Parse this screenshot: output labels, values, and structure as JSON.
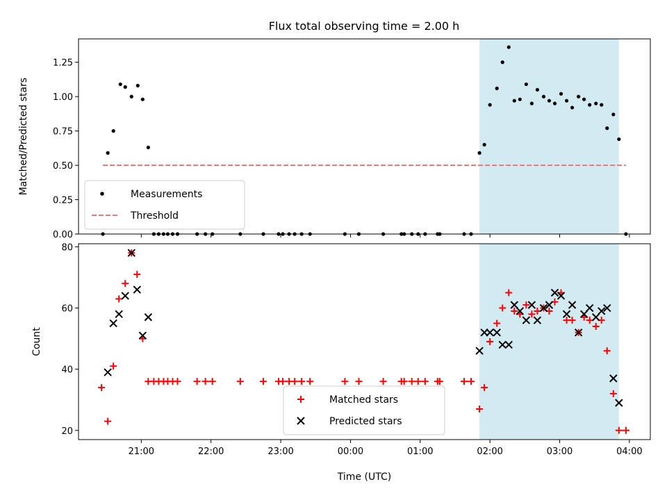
{
  "chart_data": [
    {
      "type": "scatter",
      "title": "Flux total observing time = 2.00 h",
      "xlabel": "",
      "ylabel": "Matched/Predicted stars",
      "xlim_hours": [
        20.1,
        28.3
      ],
      "ylim": [
        0,
        1.42
      ],
      "yticks": [
        0,
        0.25,
        0.5,
        0.75,
        1.0,
        1.25
      ],
      "ytick_labels": [
        "0.00",
        "0.25",
        "0.50",
        "0.75",
        "1.00",
        "1.25"
      ],
      "grid": false,
      "legend_position": "lower-left",
      "highlight": {
        "x_hours": [
          25.85,
          27.85
        ],
        "color": "#add8e6"
      },
      "threshold": {
        "name": "Threshold",
        "value": 0.5,
        "x_hours": [
          20.45,
          27.95
        ],
        "color": "#ff7070"
      },
      "series": [
        {
          "name": "Measurements",
          "color": "#000000",
          "marker": "dot",
          "points": [
            [
              20.45,
              0.0
            ],
            [
              20.52,
              0.59
            ],
            [
              20.6,
              0.75
            ],
            [
              20.7,
              1.09
            ],
            [
              20.77,
              1.07
            ],
            [
              20.86,
              1.0
            ],
            [
              20.95,
              1.08
            ],
            [
              21.02,
              0.98
            ],
            [
              21.1,
              0.63
            ],
            [
              21.18,
              0.0
            ],
            [
              21.25,
              0.0
            ],
            [
              21.32,
              0.0
            ],
            [
              21.38,
              0.0
            ],
            [
              21.45,
              0.0
            ],
            [
              21.52,
              0.0
            ],
            [
              21.8,
              0.0
            ],
            [
              21.92,
              0.0
            ],
            [
              22.02,
              0.0
            ],
            [
              22.42,
              0.0
            ],
            [
              22.75,
              0.0
            ],
            [
              22.97,
              0.0
            ],
            [
              23.03,
              0.0
            ],
            [
              23.12,
              0.0
            ],
            [
              23.2,
              0.0
            ],
            [
              23.3,
              0.0
            ],
            [
              23.42,
              0.0
            ],
            [
              23.92,
              0.0
            ],
            [
              24.12,
              0.0
            ],
            [
              24.47,
              0.0
            ],
            [
              24.73,
              0.0
            ],
            [
              24.77,
              0.0
            ],
            [
              24.88,
              0.0
            ],
            [
              24.97,
              0.0
            ],
            [
              25.07,
              0.0
            ],
            [
              25.25,
              0.0
            ],
            [
              25.28,
              0.0
            ],
            [
              25.63,
              0.0
            ],
            [
              25.73,
              0.0
            ],
            [
              25.85,
              0.59
            ],
            [
              25.92,
              0.65
            ],
            [
              26.0,
              0.94
            ],
            [
              26.1,
              1.06
            ],
            [
              26.18,
              1.25
            ],
            [
              26.27,
              1.36
            ],
            [
              26.35,
              0.97
            ],
            [
              26.43,
              0.98
            ],
            [
              26.52,
              1.09
            ],
            [
              26.6,
              0.95
            ],
            [
              26.68,
              1.05
            ],
            [
              26.77,
              1.0
            ],
            [
              26.85,
              0.97
            ],
            [
              26.93,
              0.95
            ],
            [
              27.02,
              1.02
            ],
            [
              27.1,
              0.97
            ],
            [
              27.18,
              0.92
            ],
            [
              27.27,
              1.0
            ],
            [
              27.35,
              0.98
            ],
            [
              27.43,
              0.94
            ],
            [
              27.52,
              0.95
            ],
            [
              27.6,
              0.94
            ],
            [
              27.68,
              0.77
            ],
            [
              27.77,
              0.87
            ],
            [
              27.85,
              0.69
            ],
            [
              27.95,
              0.0
            ]
          ]
        }
      ]
    },
    {
      "type": "scatter",
      "title": "",
      "xlabel": "Time (UTC)",
      "ylabel": "Count",
      "xlim_hours": [
        20.1,
        28.3
      ],
      "xticks_hours": [
        21,
        22,
        23,
        24,
        25,
        26,
        27,
        28
      ],
      "xtick_labels": [
        "21:00",
        "22:00",
        "23:00",
        "00:00",
        "01:00",
        "02:00",
        "03:00",
        "04:00"
      ],
      "ylim": [
        17,
        81
      ],
      "yticks": [
        20,
        40,
        60,
        80
      ],
      "ytick_labels": [
        "20",
        "40",
        "60",
        "80"
      ],
      "grid": false,
      "legend_position": "lower-center",
      "highlight": {
        "x_hours": [
          25.85,
          27.85
        ],
        "color": "#add8e6"
      },
      "series": [
        {
          "name": "Matched stars",
          "color": "#ff0000",
          "marker": "plus",
          "points": [
            [
              20.43,
              34
            ],
            [
              20.52,
              23
            ],
            [
              20.6,
              41
            ],
            [
              20.68,
              63
            ],
            [
              20.77,
              68
            ],
            [
              20.86,
              78
            ],
            [
              20.94,
              71
            ],
            [
              21.02,
              50
            ],
            [
              21.1,
              36
            ],
            [
              21.18,
              36
            ],
            [
              21.25,
              36
            ],
            [
              21.32,
              36
            ],
            [
              21.38,
              36
            ],
            [
              21.45,
              36
            ],
            [
              21.52,
              36
            ],
            [
              21.8,
              36
            ],
            [
              21.92,
              36
            ],
            [
              22.02,
              36
            ],
            [
              22.42,
              36
            ],
            [
              22.75,
              36
            ],
            [
              22.97,
              36
            ],
            [
              23.03,
              36
            ],
            [
              23.12,
              36
            ],
            [
              23.2,
              36
            ],
            [
              23.3,
              36
            ],
            [
              23.42,
              36
            ],
            [
              23.92,
              36
            ],
            [
              24.12,
              36
            ],
            [
              24.47,
              36
            ],
            [
              24.73,
              36
            ],
            [
              24.77,
              36
            ],
            [
              24.88,
              36
            ],
            [
              24.97,
              36
            ],
            [
              25.07,
              36
            ],
            [
              25.25,
              36
            ],
            [
              25.28,
              36
            ],
            [
              25.63,
              36
            ],
            [
              25.73,
              36
            ],
            [
              25.85,
              27
            ],
            [
              25.92,
              34
            ],
            [
              26.0,
              49
            ],
            [
              26.1,
              55
            ],
            [
              26.18,
              60
            ],
            [
              26.27,
              65
            ],
            [
              26.35,
              59
            ],
            [
              26.43,
              58
            ],
            [
              26.52,
              61
            ],
            [
              26.6,
              58
            ],
            [
              26.68,
              59
            ],
            [
              26.77,
              60
            ],
            [
              26.85,
              59
            ],
            [
              26.93,
              62
            ],
            [
              27.02,
              65
            ],
            [
              27.1,
              56
            ],
            [
              27.18,
              56
            ],
            [
              27.27,
              52
            ],
            [
              27.35,
              57
            ],
            [
              27.43,
              56
            ],
            [
              27.52,
              54
            ],
            [
              27.6,
              56
            ],
            [
              27.68,
              46
            ],
            [
              27.77,
              32
            ],
            [
              27.85,
              20
            ],
            [
              27.95,
              20
            ]
          ]
        },
        {
          "name": "Predicted stars",
          "color": "#000000",
          "marker": "cross",
          "points": [
            [
              20.52,
              39
            ],
            [
              20.6,
              55
            ],
            [
              20.68,
              58
            ],
            [
              20.77,
              64
            ],
            [
              20.86,
              78
            ],
            [
              20.94,
              66
            ],
            [
              21.02,
              51
            ],
            [
              21.1,
              57
            ],
            [
              25.85,
              46
            ],
            [
              25.92,
              52
            ],
            [
              26.0,
              52
            ],
            [
              26.1,
              52
            ],
            [
              26.18,
              48
            ],
            [
              26.27,
              48
            ],
            [
              26.35,
              61
            ],
            [
              26.43,
              59
            ],
            [
              26.52,
              56
            ],
            [
              26.6,
              61
            ],
            [
              26.68,
              56
            ],
            [
              26.77,
              60
            ],
            [
              26.85,
              61
            ],
            [
              26.93,
              65
            ],
            [
              27.02,
              64
            ],
            [
              27.1,
              58
            ],
            [
              27.18,
              61
            ],
            [
              27.27,
              52
            ],
            [
              27.35,
              58
            ],
            [
              27.43,
              60
            ],
            [
              27.52,
              57
            ],
            [
              27.6,
              59
            ],
            [
              27.68,
              60
            ],
            [
              27.77,
              37
            ],
            [
              27.85,
              29
            ]
          ]
        }
      ]
    }
  ]
}
